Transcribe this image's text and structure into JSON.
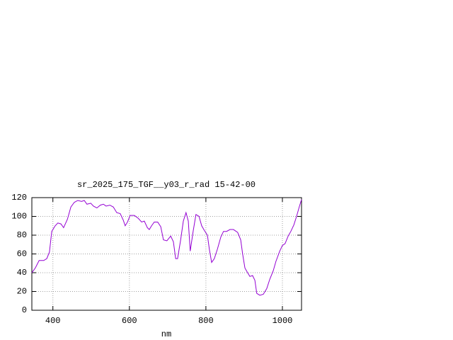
{
  "chart_data": {
    "type": "line",
    "title": "sr_2025_175_TGF__y03_r_rad 15-42-00",
    "xlabel": "nm",
    "x": [
      345,
      354,
      364,
      376,
      384,
      391,
      397,
      406,
      413,
      421,
      428,
      438,
      447,
      456,
      465,
      475,
      482,
      489,
      499,
      506,
      515,
      524,
      532,
      539,
      549,
      558,
      567,
      576,
      584,
      589,
      595,
      602,
      613,
      623,
      632,
      639,
      647,
      652,
      658,
      665,
      674,
      682,
      689,
      698,
      708,
      715,
      721,
      726,
      734,
      741,
      748,
      754,
      759,
      767,
      774,
      782,
      789,
      796,
      804,
      809,
      815,
      822,
      830,
      839,
      846,
      854,
      863,
      872,
      883,
      891,
      896,
      902,
      909,
      915,
      922,
      928,
      933,
      941,
      950,
      959,
      967,
      976,
      983,
      993,
      1000,
      1007,
      1015,
      1022,
      1030,
      1037,
      1044,
      1050
    ],
    "series": [
      {
        "color": "#9400d3",
        "values": [
          40,
          45,
          53,
          53,
          55,
          62,
          84,
          90,
          93,
          92,
          88,
          97,
          110,
          115,
          117,
          116,
          117,
          113,
          114,
          111,
          109,
          112,
          113,
          111,
          112,
          110,
          104,
          103,
          96,
          90,
          94,
          101,
          101,
          98,
          94,
          95,
          88,
          86,
          90,
          94,
          94,
          89,
          75,
          74,
          79,
          73,
          55,
          55,
          75,
          95,
          104,
          95,
          63,
          85,
          102,
          100,
          90,
          85,
          80,
          65,
          51,
          55,
          65,
          78,
          84,
          84,
          86,
          86,
          83,
          75,
          60,
          45,
          40,
          36,
          37,
          32,
          18,
          16,
          17,
          23,
          33,
          42,
          52,
          63,
          69,
          71,
          79,
          84,
          91,
          100,
          110,
          118
        ]
      }
    ],
    "xlim": [
      345,
      1050
    ],
    "ylim": [
      0,
      120
    ],
    "xticks": [
      400,
      600,
      800,
      1000
    ],
    "yticks": [
      0,
      20,
      40,
      60,
      80,
      100,
      120
    ],
    "grid": true
  }
}
